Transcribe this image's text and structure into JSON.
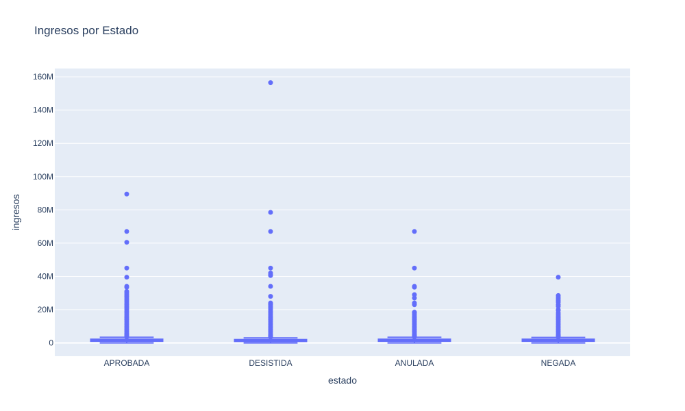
{
  "chart_data": {
    "type": "box",
    "title": "Ingresos por Estado",
    "xlabel": "estado",
    "ylabel": "ingresos",
    "categories": [
      "APROBADA",
      "DESISTIDA",
      "ANULADA",
      "NEGADA"
    ],
    "ylim": [
      -8000000,
      165000000
    ],
    "yticks": [
      0,
      20000000,
      40000000,
      60000000,
      80000000,
      100000000,
      120000000,
      140000000,
      160000000
    ],
    "ytick_labels": [
      "0",
      "20M",
      "40M",
      "60M",
      "80M",
      "100M",
      "120M",
      "140M",
      "160M"
    ],
    "grid": true,
    "colors": {
      "plot_bg": "#e5ecf6",
      "grid": "#ffffff",
      "series": "#636efa",
      "text": "#2a3f5f"
    },
    "boxes": [
      {
        "category": "APROBADA",
        "min": 0,
        "q1": 1000000,
        "median": 1500000,
        "q3": 2200000,
        "max": 3400000,
        "outliers": [
          89500000,
          67000000,
          60500000,
          45000000,
          39500000,
          34000000,
          33500000,
          31000000,
          30000000,
          29000000,
          28000000,
          27000000,
          26000000,
          25000000,
          24000000,
          23000000,
          22000000,
          21000000,
          20000000,
          19000000,
          18000000,
          17000000,
          16000000,
          15000000,
          14000000,
          13000000,
          12000000,
          11000000,
          10000000,
          9000000,
          8000000,
          7000000,
          6000000,
          5500000,
          5000000,
          4500000,
          4000000,
          3700000
        ]
      },
      {
        "category": "DESISTIDA",
        "min": 0,
        "q1": 900000,
        "median": 1300000,
        "q3": 2000000,
        "max": 3000000,
        "outliers": [
          156500000,
          78500000,
          67000000,
          45000000,
          42000000,
          41000000,
          40500000,
          34000000,
          28000000,
          24000000,
          23500000,
          23000000,
          22000000,
          21000000,
          20000000,
          19000000,
          18000000,
          17000000,
          16000000,
          15000000,
          14000000,
          13000000,
          12000000,
          11000000,
          10000000,
          9000000,
          8000000,
          7000000,
          6000000,
          5000000,
          4500000,
          4000000,
          3500000
        ]
      },
      {
        "category": "ANULADA",
        "min": 0,
        "q1": 1000000,
        "median": 1500000,
        "q3": 2200000,
        "max": 3400000,
        "outliers": [
          67000000,
          45000000,
          34000000,
          33500000,
          29000000,
          27000000,
          24000000,
          23000000,
          18500000,
          18000000,
          17000000,
          16000000,
          15000000,
          14000000,
          13000000,
          12000000,
          11000000,
          10000000,
          9000000,
          8000000,
          7000000,
          6000000,
          5000000,
          4500000,
          4000000,
          3700000
        ]
      },
      {
        "category": "NEGADA",
        "min": 0,
        "q1": 1000000,
        "median": 1500000,
        "q3": 2200000,
        "max": 3300000,
        "outliers": [
          39500000,
          28500000,
          27500000,
          26500000,
          25500000,
          24500000,
          23000000,
          22000000,
          20000000,
          19500000,
          18000000,
          17000000,
          16000000,
          15000000,
          14000000,
          13000000,
          12000000,
          11000000,
          10000000,
          9000000,
          8000000,
          7000000,
          6000000,
          5000000,
          4500000,
          4000000,
          3600000
        ]
      }
    ]
  }
}
